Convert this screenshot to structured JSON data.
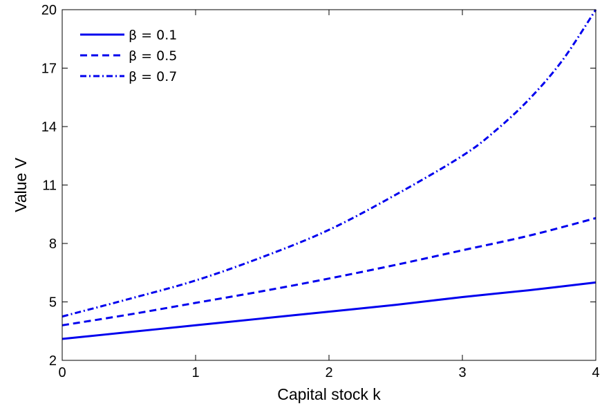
{
  "chart_data": {
    "type": "line",
    "xlabel": "Capital stock k",
    "ylabel": "Value V",
    "xlim": [
      0,
      4
    ],
    "ylim": [
      2,
      20
    ],
    "x_ticks": [
      0,
      1,
      2,
      3,
      4
    ],
    "y_ticks": [
      2,
      5,
      8,
      11,
      14,
      17,
      20
    ],
    "grid": false,
    "legend_position": "top-left",
    "line_color": "#0000ee",
    "series": [
      {
        "name": "β = 0.1",
        "style": "solid",
        "x": [
          0,
          0.5,
          1,
          1.5,
          2,
          2.5,
          3,
          3.5,
          4
        ],
        "y": [
          3.1,
          3.45,
          3.8,
          4.15,
          4.5,
          4.85,
          5.25,
          5.6,
          6.0
        ]
      },
      {
        "name": "β = 0.5",
        "style": "dashed",
        "x": [
          0,
          0.5,
          1,
          1.5,
          2,
          2.5,
          3,
          3.5,
          4
        ],
        "y": [
          3.8,
          4.35,
          4.95,
          5.55,
          6.2,
          6.9,
          7.65,
          8.4,
          9.3
        ]
      },
      {
        "name": "β = 0.7",
        "style": "dashdot",
        "x": [
          0,
          0.5,
          1,
          1.5,
          2,
          2.5,
          3,
          3.25,
          3.5,
          3.75,
          4
        ],
        "y": [
          4.25,
          5.15,
          6.1,
          7.3,
          8.7,
          10.5,
          12.5,
          13.8,
          15.4,
          17.4,
          20.0
        ]
      }
    ]
  }
}
